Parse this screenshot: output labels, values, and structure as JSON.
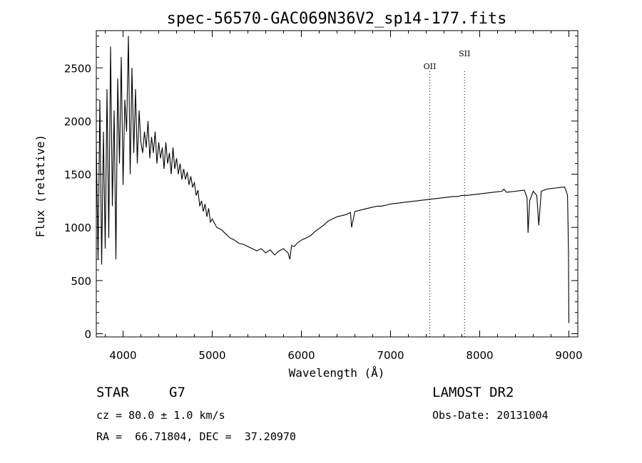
{
  "chart_data": {
    "type": "line",
    "title": "spec-56570-GAC069N36V2_sp14-177.fits",
    "xlabel": "Wavelength (Å)",
    "ylabel": "Flux (relative)",
    "xlim": [
      3700,
      9100
    ],
    "ylim": [
      -30,
      2850
    ],
    "x_ticks": [
      4000,
      5000,
      6000,
      7000,
      8000,
      9000
    ],
    "y_ticks": [
      0,
      500,
      1000,
      1500,
      2000,
      2500
    ],
    "emission_lines": [
      {
        "name": "OII",
        "wavelength": 7440
      },
      {
        "name": "SII",
        "wavelength": 7830
      }
    ],
    "series": [
      {
        "name": "spectrum",
        "x": [
          3700,
          3720,
          3740,
          3760,
          3780,
          3800,
          3820,
          3840,
          3860,
          3880,
          3900,
          3920,
          3940,
          3960,
          3980,
          4000,
          4020,
          4040,
          4060,
          4080,
          4100,
          4120,
          4140,
          4160,
          4180,
          4200,
          4220,
          4240,
          4260,
          4280,
          4300,
          4320,
          4340,
          4360,
          4380,
          4400,
          4420,
          4440,
          4460,
          4480,
          4500,
          4520,
          4540,
          4560,
          4580,
          4600,
          4620,
          4640,
          4660,
          4680,
          4700,
          4720,
          4740,
          4760,
          4780,
          4800,
          4820,
          4840,
          4860,
          4880,
          4900,
          4920,
          4940,
          4960,
          4980,
          5000,
          5050,
          5100,
          5150,
          5200,
          5250,
          5300,
          5350,
          5400,
          5450,
          5500,
          5550,
          5600,
          5650,
          5700,
          5750,
          5800,
          5850,
          5870,
          5890,
          5920,
          5950,
          6000,
          6050,
          6100,
          6150,
          6200,
          6250,
          6300,
          6350,
          6400,
          6450,
          6500,
          6550,
          6563,
          6600,
          6650,
          6700,
          6750,
          6800,
          6850,
          6900,
          6950,
          7000,
          7050,
          7100,
          7150,
          7200,
          7250,
          7300,
          7350,
          7400,
          7450,
          7500,
          7550,
          7600,
          7650,
          7700,
          7750,
          7800,
          7850,
          7900,
          7950,
          8000,
          8050,
          8100,
          8150,
          8200,
          8250,
          8270,
          8300,
          8350,
          8400,
          8450,
          8500,
          8530,
          8542,
          8560,
          8600,
          8640,
          8662,
          8690,
          8750,
          8800,
          8850,
          8900,
          8950,
          8970,
          8985,
          8995,
          9000
        ],
        "values": [
          1800,
          700,
          2200,
          650,
          1900,
          800,
          2300,
          900,
          2700,
          1200,
          2100,
          700,
          2400,
          1600,
          2600,
          1400,
          2200,
          1900,
          2800,
          1500,
          2500,
          1700,
          2300,
          1600,
          2100,
          1800,
          1700,
          1900,
          1750,
          2000,
          1650,
          1850,
          1700,
          1900,
          1600,
          1800,
          1650,
          1750,
          1550,
          1800,
          1600,
          1700,
          1500,
          1750,
          1550,
          1650,
          1500,
          1600,
          1450,
          1550,
          1450,
          1520,
          1400,
          1480,
          1380,
          1420,
          1300,
          1350,
          1200,
          1250,
          1150,
          1220,
          1100,
          1180,
          1050,
          1080,
          1000,
          980,
          940,
          900,
          880,
          850,
          840,
          820,
          800,
          780,
          800,
          760,
          790,
          740,
          780,
          800,
          760,
          700,
          830,
          820,
          850,
          880,
          900,
          920,
          960,
          990,
          1020,
          1060,
          1080,
          1100,
          1110,
          1120,
          1140,
          1000,
          1150,
          1160,
          1170,
          1180,
          1190,
          1200,
          1200,
          1210,
          1220,
          1225,
          1230,
          1235,
          1240,
          1245,
          1250,
          1255,
          1260,
          1265,
          1270,
          1275,
          1280,
          1285,
          1290,
          1290,
          1300,
          1300,
          1305,
          1310,
          1315,
          1320,
          1325,
          1330,
          1335,
          1340,
          1360,
          1330,
          1335,
          1340,
          1345,
          1350,
          1280,
          950,
          1250,
          1340,
          1300,
          1020,
          1340,
          1360,
          1365,
          1370,
          1375,
          1380,
          1340,
          1300,
          800,
          100
        ]
      }
    ]
  },
  "footer": {
    "object_type": "STAR",
    "subclass": "G7",
    "survey": "LAMOST DR2",
    "redshift": "cz = 80.0 ± 1.0 km/s",
    "obs_date": "Obs-Date: 20131004",
    "coords": "RA =  66.71804, DEC =  37.20970"
  }
}
